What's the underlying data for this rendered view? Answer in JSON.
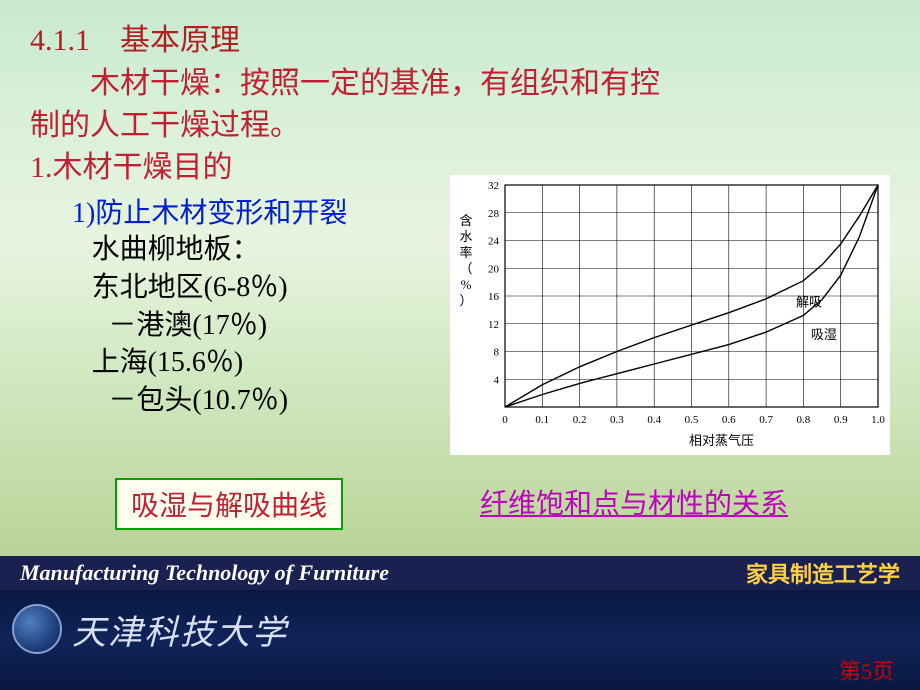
{
  "heading": {
    "num": "4.1.1　基本原理"
  },
  "para1_a": "木材干燥：按照一定的基准，有组织和有控",
  "para1_b": "制的人工干燥过程。",
  "sub1": "1.木材干燥目的",
  "sub1_1": "1)防止木材变形和开裂",
  "lines": {
    "l1": "水曲柳地板：",
    "l2": "东北地区(6-8％)",
    "l3": "－港澳(17％)",
    "l4": "上海(15.6％)",
    "l5": "－包头(10.7％)"
  },
  "box1": "吸湿与解吸曲线",
  "box2": "纤维饱和点与材性的关系",
  "mid_left": "Manufacturing Technology of Furniture",
  "mid_right": "家具制造工艺学",
  "uni_name": "天津科技大学",
  "pagenum": "第5页",
  "chart": {
    "type": "line",
    "xlabel": "相对蒸气压",
    "ylabel": "含水率（%）",
    "xlim": [
      0,
      1.0
    ],
    "ylim": [
      0,
      32
    ],
    "xticks": [
      0,
      0.1,
      0.2,
      0.3,
      0.4,
      0.5,
      0.6,
      0.7,
      0.8,
      0.9,
      1.0
    ],
    "yticks": [
      4,
      8,
      12,
      16,
      20,
      24,
      28,
      32
    ],
    "background_color": "#ffffff",
    "grid_color": "#000000",
    "axis_fontsize": 11,
    "label_fontsize": 13,
    "line_color": "#000000",
    "line_width": 1.4,
    "series": [
      {
        "name": "解吸",
        "label_pos": [
          0.78,
          14.5
        ],
        "points": [
          [
            0,
            0
          ],
          [
            0.1,
            3.2
          ],
          [
            0.2,
            5.8
          ],
          [
            0.3,
            8.0
          ],
          [
            0.4,
            10.0
          ],
          [
            0.5,
            11.8
          ],
          [
            0.6,
            13.6
          ],
          [
            0.7,
            15.6
          ],
          [
            0.8,
            18.2
          ],
          [
            0.85,
            20.5
          ],
          [
            0.9,
            23.5
          ],
          [
            0.95,
            27.5
          ],
          [
            1.0,
            32
          ]
        ]
      },
      {
        "name": "吸湿",
        "label_pos": [
          0.82,
          9.8
        ],
        "points": [
          [
            0,
            0
          ],
          [
            0.1,
            1.8
          ],
          [
            0.2,
            3.4
          ],
          [
            0.3,
            4.8
          ],
          [
            0.4,
            6.2
          ],
          [
            0.5,
            7.6
          ],
          [
            0.6,
            9.0
          ],
          [
            0.7,
            10.8
          ],
          [
            0.8,
            13.2
          ],
          [
            0.85,
            15.5
          ],
          [
            0.9,
            19.0
          ],
          [
            0.95,
            24.5
          ],
          [
            1.0,
            32
          ]
        ]
      }
    ]
  }
}
